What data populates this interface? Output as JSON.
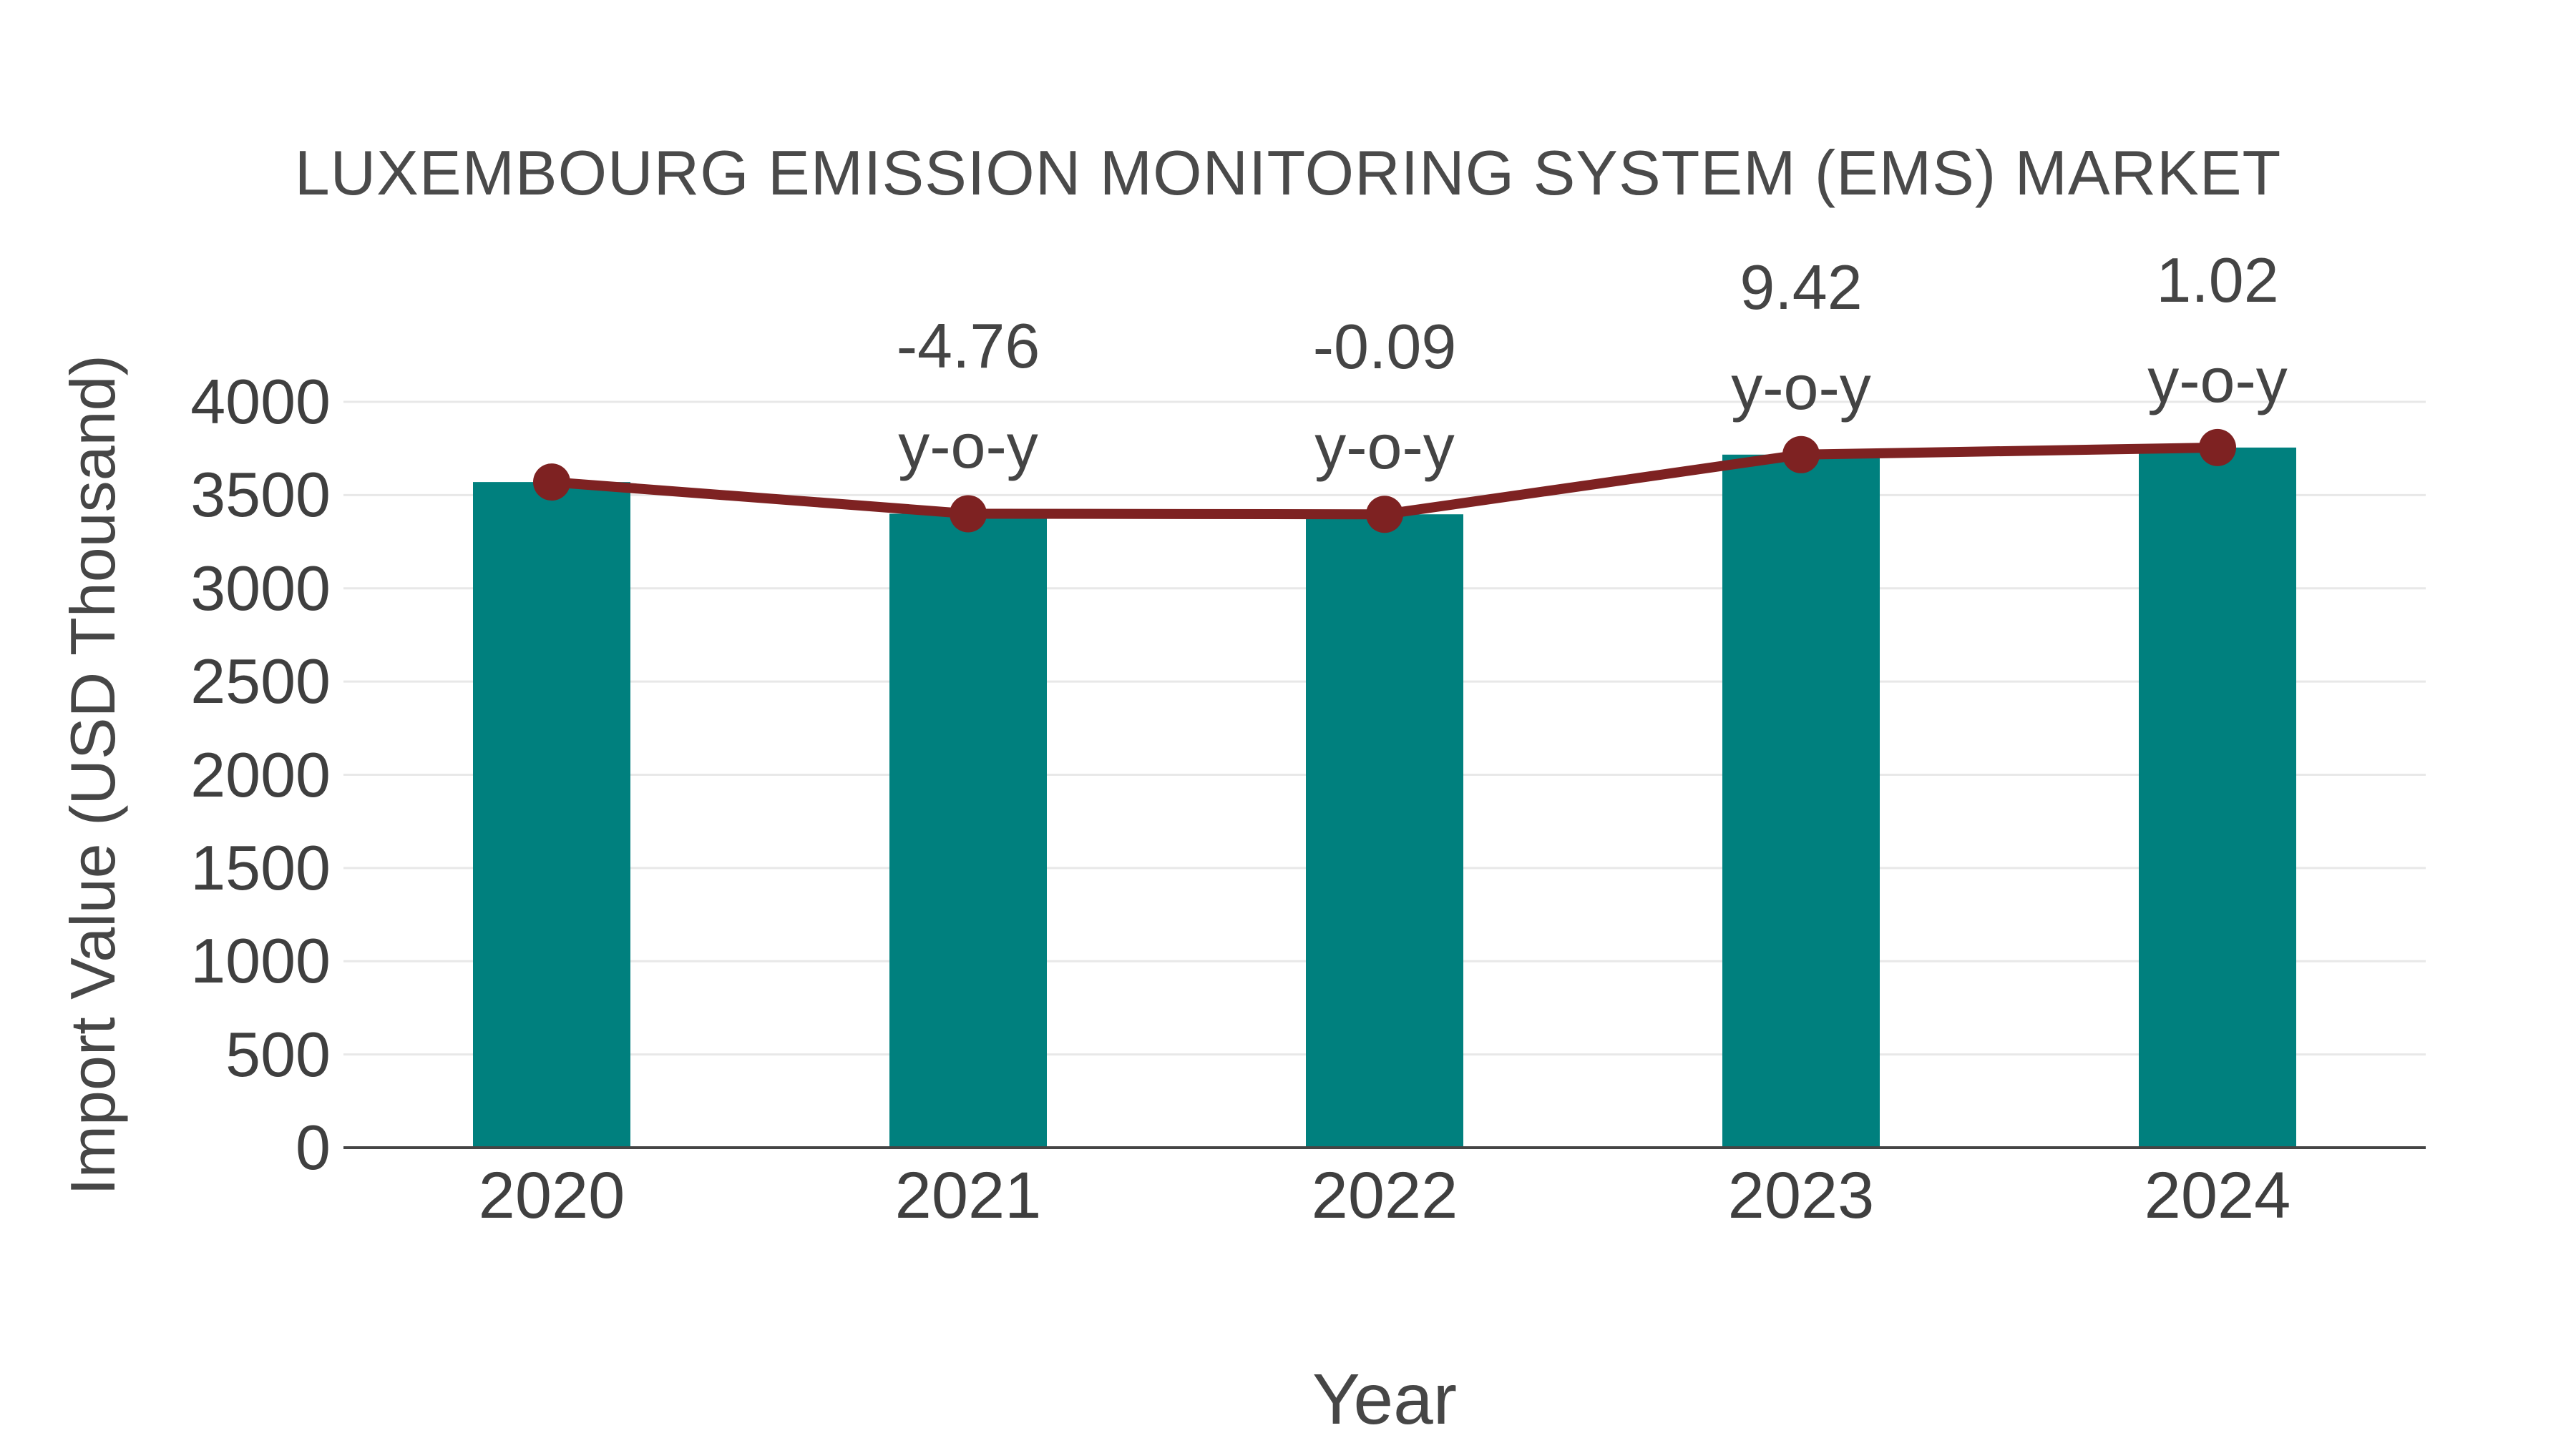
{
  "chart_data": {
    "type": "bar",
    "title": "LUXEMBOURG EMISSION MONITORING SYSTEM (EMS) MARKET",
    "xlabel": "Year",
    "ylabel": "Import Value (USD Thousand)",
    "categories": [
      "2020",
      "2021",
      "2022",
      "2023",
      "2024"
    ],
    "series": [
      {
        "name": "Import Value bars",
        "type": "bar",
        "values": [
          3570,
          3400,
          3397,
          3717,
          3755
        ]
      },
      {
        "name": "Import Value trend line",
        "type": "line",
        "values": [
          3570,
          3400,
          3397,
          3717,
          3755
        ]
      }
    ],
    "annotations": [
      {
        "category": "2021",
        "value_text": "-4.76",
        "suffix_text": "y-o-y"
      },
      {
        "category": "2022",
        "value_text": "-0.09",
        "suffix_text": "y-o-y"
      },
      {
        "category": "2023",
        "value_text": "9.42",
        "suffix_text": "y-o-y"
      },
      {
        "category": "2024",
        "value_text": "1.02",
        "suffix_text": "y-o-y"
      }
    ],
    "yticks": [
      0,
      500,
      1000,
      1500,
      2000,
      2500,
      3000,
      3500,
      4000
    ],
    "ylim": [
      0,
      4000
    ],
    "grid": true,
    "legend_position": "none",
    "colors": {
      "bar": "#00807E",
      "line": "#7E2222",
      "marker": "#7E2222",
      "gridline": "#E8E8E8",
      "axis_line": "#454545",
      "text": "#3f3f3f"
    }
  }
}
